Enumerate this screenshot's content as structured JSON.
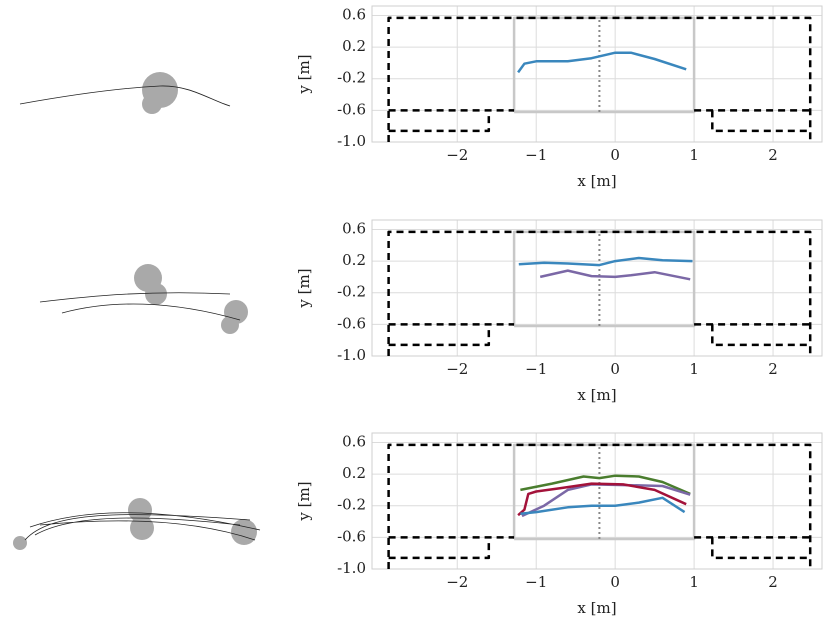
{
  "chart_data": [
    {
      "type": "line",
      "xlabel": "x [m]",
      "ylabel": "y [m]",
      "xlim": [
        -3.08,
        2.62
      ],
      "ylim": [
        -1.0,
        0.72
      ],
      "xticks": [
        {
          "value": -2,
          "label": "−2"
        },
        {
          "value": -1,
          "label": "−1"
        },
        0,
        1,
        2
      ],
      "yticks": [
        0.6,
        0.2,
        -0.2,
        -0.6,
        {
          "value": -1.0,
          "label": "-1.0"
        }
      ],
      "grid": true,
      "series": [
        {
          "color": "#c8c8c8",
          "width": 2.5,
          "x": [
            -1.28,
            -1.28,
            1.0,
            1.0,
            -1.28
          ],
          "values": [
            -0.62,
            0.57,
            0.57,
            -0.62,
            -0.62
          ]
        },
        {
          "color": "#000000",
          "dash": "dashed",
          "width": 2.5,
          "x": [
            -2.87,
            -2.87,
            2.47,
            2.47
          ],
          "values": [
            -1.0,
            0.57,
            0.57,
            -1.0
          ]
        },
        {
          "color": "#000000",
          "dash": "dashed",
          "width": 2.5,
          "x": [
            -2.87,
            -1.28,
            null,
            -2.87,
            -1.6,
            -1.6
          ],
          "values": [
            -0.6,
            -0.6,
            null,
            -0.86,
            -0.86,
            -0.6
          ]
        },
        {
          "color": "#000000",
          "dash": "dashed",
          "width": 2.5,
          "x": [
            1.0,
            2.47,
            null,
            1.23,
            1.23,
            2.47
          ],
          "values": [
            -0.6,
            -0.6,
            null,
            -0.6,
            -0.86,
            -0.86
          ]
        },
        {
          "color": "#888888",
          "dash": "dotted",
          "width": 2,
          "x": [
            -0.2,
            -0.2
          ],
          "values": [
            -0.62,
            0.57
          ]
        },
        {
          "color": "#3a87bd",
          "width": 2.5,
          "x": [
            -1.23,
            -1.15,
            -1.0,
            -0.6,
            -0.3,
            0.0,
            0.2,
            0.5,
            0.9
          ],
          "values": [
            -0.12,
            -0.01,
            0.02,
            0.02,
            0.06,
            0.13,
            0.13,
            0.05,
            -0.08
          ]
        }
      ]
    },
    {
      "type": "line",
      "xlabel": "x [m]",
      "ylabel": "y [m]",
      "xlim": [
        -3.08,
        2.62
      ],
      "ylim": [
        -1.0,
        0.72
      ],
      "xticks": [
        {
          "value": -2,
          "label": "−2"
        },
        {
          "value": -1,
          "label": "−1"
        },
        0,
        1,
        2
      ],
      "yticks": [
        0.6,
        0.2,
        -0.2,
        -0.6,
        {
          "value": -1.0,
          "label": "-1.0"
        }
      ],
      "grid": true,
      "series": [
        {
          "color": "#c8c8c8",
          "width": 2.5,
          "x": [
            -1.28,
            -1.28,
            1.0,
            1.0,
            -1.28
          ],
          "values": [
            -0.62,
            0.57,
            0.57,
            -0.62,
            -0.62
          ]
        },
        {
          "color": "#000000",
          "dash": "dashed",
          "width": 2.5,
          "x": [
            -2.87,
            -2.87,
            2.47,
            2.47
          ],
          "values": [
            -1.0,
            0.57,
            0.57,
            -1.0
          ]
        },
        {
          "color": "#000000",
          "dash": "dashed",
          "width": 2.5,
          "x": [
            -2.87,
            -1.28,
            null,
            -2.87,
            -1.6,
            -1.6
          ],
          "values": [
            -0.6,
            -0.6,
            null,
            -0.86,
            -0.86,
            -0.6
          ]
        },
        {
          "color": "#000000",
          "dash": "dashed",
          "width": 2.5,
          "x": [
            1.0,
            2.47,
            null,
            1.23,
            1.23,
            2.47
          ],
          "values": [
            -0.6,
            -0.6,
            null,
            -0.6,
            -0.86,
            -0.86
          ]
        },
        {
          "color": "#888888",
          "dash": "dotted",
          "width": 2,
          "x": [
            -0.2,
            -0.2
          ],
          "values": [
            -0.62,
            0.57
          ]
        },
        {
          "color": "#3a87bd",
          "width": 2.5,
          "x": [
            -1.22,
            -0.9,
            -0.6,
            -0.2,
            0.0,
            0.3,
            0.6,
            0.98
          ],
          "values": [
            0.16,
            0.18,
            0.17,
            0.15,
            0.2,
            0.24,
            0.21,
            0.2
          ]
        },
        {
          "color": "#7b68a6",
          "width": 2.5,
          "x": [
            -0.95,
            -0.6,
            -0.3,
            0.0,
            0.2,
            0.5,
            0.95
          ],
          "values": [
            0.0,
            0.08,
            0.01,
            0.0,
            0.02,
            0.06,
            -0.03
          ]
        }
      ]
    },
    {
      "type": "line",
      "xlabel": "x [m]",
      "ylabel": "y [m]",
      "xlim": [
        -3.08,
        2.62
      ],
      "ylim": [
        -1.0,
        0.72
      ],
      "xticks": [
        {
          "value": -2,
          "label": "−2"
        },
        {
          "value": -1,
          "label": "−1"
        },
        0,
        1,
        2
      ],
      "yticks": [
        0.6,
        0.2,
        -0.2,
        -0.6,
        {
          "value": -1.0,
          "label": "-1.0"
        }
      ],
      "grid": true,
      "series": [
        {
          "color": "#c8c8c8",
          "width": 2.5,
          "x": [
            -1.28,
            -1.28,
            1.0,
            1.0,
            -1.28
          ],
          "values": [
            -0.62,
            0.57,
            0.57,
            -0.62,
            -0.62
          ]
        },
        {
          "color": "#000000",
          "dash": "dashed",
          "width": 2.5,
          "x": [
            -2.87,
            -2.87,
            2.47,
            2.47
          ],
          "values": [
            -1.0,
            0.57,
            0.57,
            -1.0
          ]
        },
        {
          "color": "#000000",
          "dash": "dashed",
          "width": 2.5,
          "x": [
            -2.87,
            -1.28,
            null,
            -2.87,
            -1.6,
            -1.6
          ],
          "values": [
            -0.6,
            -0.6,
            null,
            -0.86,
            -0.86,
            -0.6
          ]
        },
        {
          "color": "#000000",
          "dash": "dashed",
          "width": 2.5,
          "x": [
            1.0,
            2.47,
            null,
            1.23,
            1.23,
            2.47
          ],
          "values": [
            -0.6,
            -0.6,
            null,
            -0.6,
            -0.86,
            -0.86
          ]
        },
        {
          "color": "#888888",
          "dash": "dotted",
          "width": 2,
          "x": [
            -0.2,
            -0.2
          ],
          "values": [
            -0.62,
            0.57
          ]
        },
        {
          "color": "#4a7d2e",
          "width": 2.5,
          "x": [
            -1.2,
            -0.8,
            -0.4,
            -0.2,
            0.0,
            0.3,
            0.6,
            0.95
          ],
          "values": [
            0.0,
            0.08,
            0.17,
            0.15,
            0.18,
            0.17,
            0.1,
            -0.05
          ]
        },
        {
          "color": "#7b68a6",
          "width": 2.5,
          "x": [
            -1.18,
            -0.9,
            -0.6,
            -0.3,
            0.2,
            0.6,
            0.95
          ],
          "values": [
            -0.33,
            -0.2,
            0.0,
            0.07,
            0.06,
            0.05,
            -0.06
          ]
        },
        {
          "color": "#a3123a",
          "width": 2.5,
          "x": [
            -1.23,
            -1.15,
            -1.1,
            -1.0,
            -0.7,
            -0.3,
            0.1,
            0.5,
            0.9
          ],
          "values": [
            -0.32,
            -0.25,
            -0.05,
            -0.02,
            0.02,
            0.08,
            0.07,
            0.0,
            -0.18
          ]
        },
        {
          "color": "#3a87bd",
          "width": 2.5,
          "x": [
            -1.2,
            -1.0,
            -0.6,
            -0.3,
            0.0,
            0.3,
            0.6,
            0.88
          ],
          "values": [
            -0.3,
            -0.28,
            -0.22,
            -0.2,
            -0.2,
            -0.16,
            -0.1,
            -0.28
          ]
        }
      ]
    }
  ]
}
